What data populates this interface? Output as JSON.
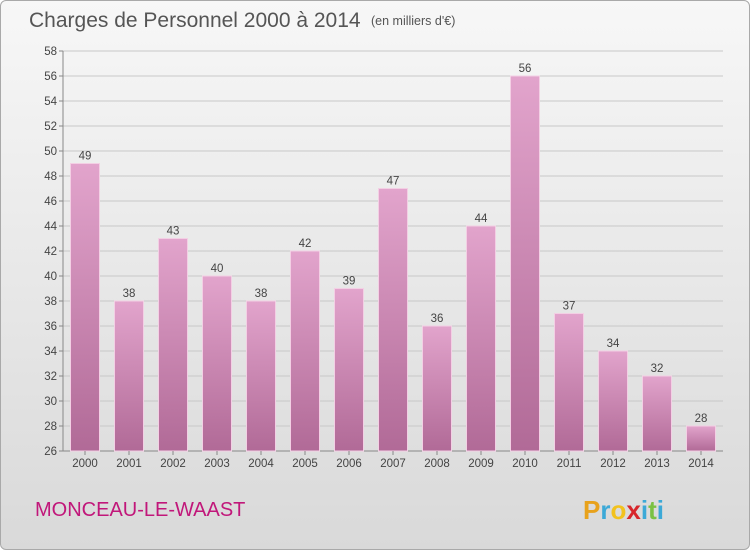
{
  "chart_data": {
    "type": "bar",
    "title": "Charges de Personnel 2000 à 2014",
    "subtitle": "(en milliers d'€)",
    "categories": [
      "2000",
      "2001",
      "2002",
      "2003",
      "2004",
      "2005",
      "2006",
      "2007",
      "2008",
      "2009",
      "2010",
      "2011",
      "2012",
      "2013",
      "2014"
    ],
    "values": [
      49,
      38,
      43,
      40,
      38,
      42,
      39,
      47,
      36,
      44,
      56,
      37,
      34,
      32,
      28
    ],
    "ylim": [
      26,
      58
    ],
    "yticks": [
      26,
      28,
      30,
      32,
      34,
      36,
      38,
      40,
      42,
      44,
      46,
      48,
      50,
      52,
      54,
      56,
      58
    ],
    "grid": true,
    "bar_color": "#dd99c4",
    "xlabel": "",
    "ylabel": ""
  },
  "location": "MONCEAU-LE-WAAST",
  "brand": {
    "letters": [
      "P",
      "r",
      "o",
      "x",
      "i",
      "t",
      "i"
    ],
    "colors": [
      "#e8a21c",
      "#3ca9d7",
      "#f2c21e",
      "#d7262b",
      "#3ca9d7",
      "#7ac143",
      "#3ca9d7"
    ]
  }
}
